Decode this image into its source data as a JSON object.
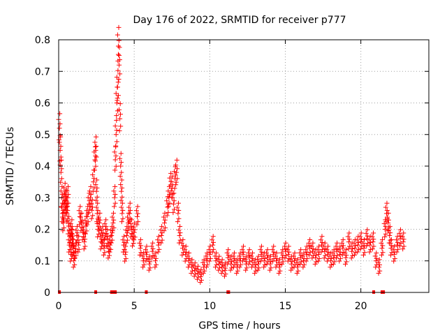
{
  "chart_data": {
    "type": "scatter",
    "title": "Day 176 of 2022, SRMTID for receiver p777",
    "xlabel": "GPS time / hours",
    "ylabel": "SRMTID / TECUs",
    "xlim": [
      0,
      24.5
    ],
    "ylim": [
      0,
      0.8
    ],
    "x_ticks": [
      0,
      5,
      10,
      15,
      20
    ],
    "y_ticks": [
      0,
      0.1,
      0.2,
      0.3,
      0.4,
      0.5,
      0.6,
      0.7,
      0.8
    ],
    "x_tick_labels": [
      "0",
      "5",
      "10",
      "15",
      "20"
    ],
    "y_tick_labels": [
      "0",
      "0.1",
      "0.2",
      "0.3",
      "0.4",
      "0.5",
      "0.6",
      "0.7",
      "0.8"
    ],
    "grid": true,
    "marker": "+",
    "color": "#ff0000",
    "gap_markers_x": [
      0.05,
      2.45,
      3.5,
      3.65,
      3.75,
      5.8,
      11.2,
      11.25,
      20.85,
      21.4,
      21.5
    ],
    "series": [
      {
        "name": "SRMTID",
        "x": [
          0.05,
          0.1,
          0.15,
          0.2,
          0.25,
          0.3,
          0.35,
          0.4,
          0.45,
          0.5,
          0.55,
          0.6,
          0.65,
          0.7,
          0.75,
          0.8,
          0.85,
          0.9,
          0.95,
          1.0,
          1.1,
          1.2,
          1.3,
          1.4,
          1.5,
          1.6,
          1.7,
          1.8,
          1.9,
          2.0,
          2.1,
          2.2,
          2.3,
          2.4,
          2.45,
          2.5,
          2.55,
          2.6,
          2.7,
          2.8,
          2.9,
          3.0,
          3.1,
          3.2,
          3.3,
          3.4,
          3.5,
          3.6,
          3.7,
          3.75,
          3.8,
          3.85,
          3.9,
          3.95,
          4.0,
          4.05,
          4.1,
          4.15,
          4.2,
          4.3,
          4.4,
          4.5,
          4.6,
          4.7,
          4.8,
          4.9,
          5.0,
          5.2,
          5.4,
          5.6,
          5.8,
          6.0,
          6.2,
          6.4,
          6.6,
          6.8,
          7.0,
          7.2,
          7.3,
          7.4,
          7.5,
          7.6,
          7.7,
          7.8,
          7.9,
          8.0,
          8.2,
          8.4,
          8.6,
          8.8,
          9.0,
          9.2,
          9.4,
          9.6,
          9.8,
          10.0,
          10.2,
          10.4,
          10.6,
          10.8,
          11.0,
          11.2,
          11.4,
          11.6,
          11.8,
          12.0,
          12.2,
          12.4,
          12.6,
          12.8,
          13.0,
          13.2,
          13.4,
          13.6,
          13.8,
          14.0,
          14.2,
          14.4,
          14.6,
          14.8,
          15.0,
          15.2,
          15.4,
          15.6,
          15.8,
          16.0,
          16.2,
          16.4,
          16.6,
          16.8,
          17.0,
          17.2,
          17.4,
          17.6,
          17.8,
          18.0,
          18.2,
          18.4,
          18.6,
          18.8,
          19.0,
          19.2,
          19.4,
          19.6,
          19.8,
          20.0,
          20.2,
          20.4,
          20.6,
          20.8,
          21.0,
          21.2,
          21.4,
          21.6,
          21.7,
          21.8,
          21.9,
          22.0,
          22.2,
          22.4,
          22.6,
          22.8
        ],
        "y": [
          0.52,
          0.45,
          0.38,
          0.3,
          0.25,
          0.22,
          0.28,
          0.31,
          0.27,
          0.29,
          0.25,
          0.3,
          0.21,
          0.15,
          0.18,
          0.12,
          0.2,
          0.17,
          0.14,
          0.1,
          0.13,
          0.18,
          0.15,
          0.24,
          0.22,
          0.19,
          0.16,
          0.21,
          0.24,
          0.28,
          0.3,
          0.26,
          0.35,
          0.42,
          0.45,
          0.32,
          0.25,
          0.2,
          0.22,
          0.16,
          0.18,
          0.14,
          0.2,
          0.17,
          0.13,
          0.15,
          0.18,
          0.22,
          0.3,
          0.42,
          0.5,
          0.6,
          0.65,
          0.78,
          0.72,
          0.55,
          0.4,
          0.32,
          0.25,
          0.15,
          0.12,
          0.18,
          0.22,
          0.25,
          0.2,
          0.17,
          0.19,
          0.24,
          0.14,
          0.1,
          0.12,
          0.09,
          0.13,
          0.1,
          0.15,
          0.18,
          0.22,
          0.27,
          0.3,
          0.34,
          0.33,
          0.28,
          0.36,
          0.38,
          0.25,
          0.18,
          0.14,
          0.12,
          0.1,
          0.08,
          0.07,
          0.06,
          0.05,
          0.08,
          0.1,
          0.12,
          0.15,
          0.1,
          0.09,
          0.08,
          0.07,
          0.11,
          0.09,
          0.1,
          0.08,
          0.1,
          0.12,
          0.09,
          0.11,
          0.1,
          0.08,
          0.09,
          0.12,
          0.1,
          0.11,
          0.09,
          0.12,
          0.1,
          0.08,
          0.11,
          0.13,
          0.12,
          0.09,
          0.1,
          0.08,
          0.11,
          0.1,
          0.12,
          0.14,
          0.13,
          0.11,
          0.12,
          0.15,
          0.13,
          0.12,
          0.1,
          0.11,
          0.13,
          0.12,
          0.14,
          0.11,
          0.16,
          0.13,
          0.14,
          0.15,
          0.16,
          0.14,
          0.17,
          0.15,
          0.16,
          0.1,
          0.08,
          0.14,
          0.2,
          0.25,
          0.22,
          0.18,
          0.14,
          0.12,
          0.15,
          0.17,
          0.16
        ]
      }
    ]
  }
}
